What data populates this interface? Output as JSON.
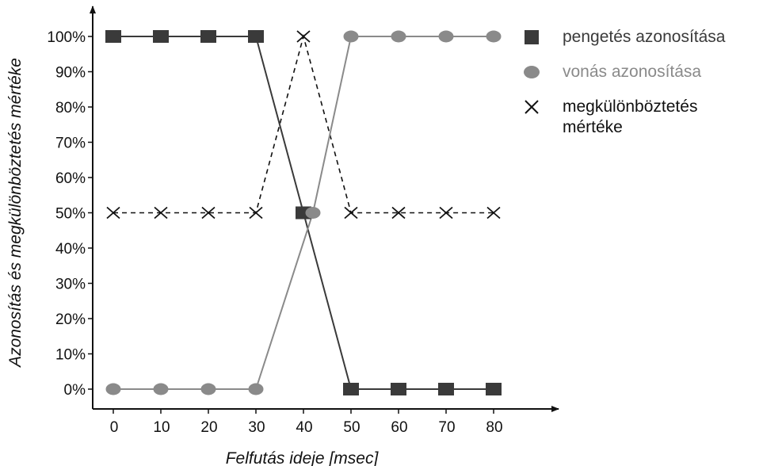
{
  "chart_data": {
    "type": "line",
    "x": [
      0,
      10,
      20,
      30,
      40,
      50,
      60,
      70,
      80
    ],
    "xlabel": "Felfutás ideje [msec]",
    "ylabel": "Azonosítás és megkülönböztetés mértéke",
    "xticks": [
      "0",
      "10",
      "20",
      "30",
      "40",
      "50",
      "60",
      "70",
      "80"
    ],
    "yticks": [
      "0%",
      "10%",
      "20%",
      "30%",
      "40%",
      "50%",
      "60%",
      "70%",
      "80%",
      "90%",
      "100%"
    ],
    "ylim": [
      0,
      100
    ],
    "xlim": [
      -5,
      88
    ],
    "grid": false,
    "legend_position": "top-right",
    "series": [
      {
        "name": "pengetés azonosítása",
        "marker": "square",
        "color": "#3a3a3a",
        "line": "solid",
        "points": [
          [
            0,
            100
          ],
          [
            10,
            100
          ],
          [
            20,
            100
          ],
          [
            30,
            100
          ],
          [
            40,
            50
          ],
          [
            50,
            0
          ],
          [
            60,
            0
          ],
          [
            70,
            0
          ],
          [
            80,
            0
          ]
        ]
      },
      {
        "name": "vonás azonosítása",
        "marker": "circle",
        "color": "#8a8a8a",
        "line": "solid",
        "points": [
          [
            0,
            0
          ],
          [
            10,
            0
          ],
          [
            20,
            0
          ],
          [
            30,
            0
          ],
          [
            42,
            50
          ],
          [
            50,
            100
          ],
          [
            60,
            100
          ],
          [
            70,
            100
          ],
          [
            80,
            100
          ]
        ]
      },
      {
        "name": "megkülönböztetés mértéke",
        "marker": "x",
        "color": "#111111",
        "line": "dashed",
        "points": [
          [
            0,
            50
          ],
          [
            10,
            50
          ],
          [
            20,
            50
          ],
          [
            30,
            50
          ],
          [
            40,
            100
          ],
          [
            50,
            50
          ],
          [
            60,
            50
          ],
          [
            70,
            50
          ],
          [
            80,
            50
          ]
        ]
      }
    ]
  },
  "legend": [
    {
      "label": "pengetés azonosítása",
      "color": "#3a3a3a",
      "label_color": "#3a3a3a",
      "marker": "square-icon"
    },
    {
      "label": "vonás azonosítása",
      "color": "#8a8a8a",
      "label_color": "#8a8a8a",
      "marker": "circle-icon"
    },
    {
      "label": "megkülönböztetés mértéke",
      "color": "#111111",
      "label_color": "#111111",
      "marker": "cross-icon"
    }
  ]
}
